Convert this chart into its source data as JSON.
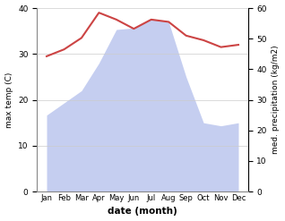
{
  "months": [
    "Jan",
    "Feb",
    "Mar",
    "Apr",
    "May",
    "Jun",
    "Jul",
    "Aug",
    "Sep",
    "Oct",
    "Nov",
    "Dec"
  ],
  "temperature": [
    29.5,
    31.0,
    33.5,
    39.0,
    37.5,
    35.5,
    37.5,
    37.0,
    34.0,
    33.0,
    31.5,
    32.0
  ],
  "precipitation": [
    25.0,
    29.0,
    33.0,
    42.0,
    53.0,
    53.5,
    56.5,
    55.5,
    37.5,
    22.5,
    21.5,
    22.5
  ],
  "temp_color": "#cc4444",
  "precip_fill_color": "#c5cef0",
  "temp_ylim": [
    0,
    40
  ],
  "precip_ylim": [
    0,
    60
  ],
  "temp_yticks": [
    0,
    10,
    20,
    30,
    40
  ],
  "precip_yticks": [
    0,
    10,
    20,
    30,
    40,
    50,
    60
  ],
  "ylabel_left": "max temp (C)",
  "ylabel_right": "med. precipitation (kg/m2)",
  "xlabel": "date (month)",
  "grid_color": "#cccccc"
}
